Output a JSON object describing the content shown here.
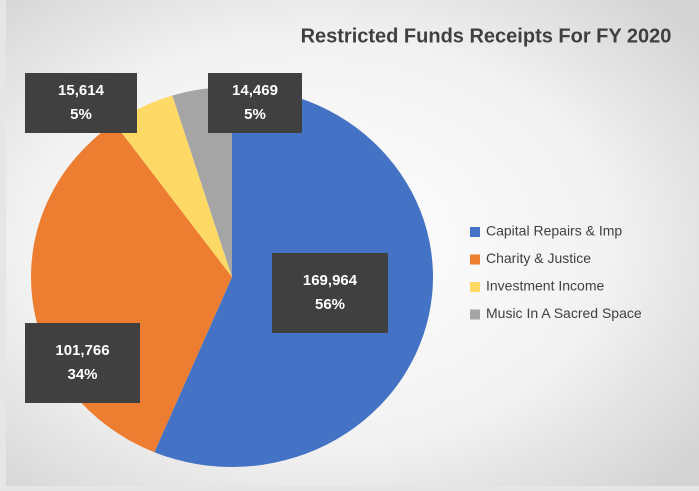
{
  "chart_data": {
    "type": "pie",
    "title": "Restricted Funds Receipts For FY 2020",
    "categories": [
      "Capital Repairs & Imp",
      "Charity & Justice",
      "Investment Income",
      "Music In A Sacred Space"
    ],
    "values": [
      169964,
      101766,
      15614,
      14469
    ],
    "value_labels": [
      "169,964",
      "101,766",
      "15,614",
      "14,469"
    ],
    "percents": [
      {
        "value": 56,
        "label": "56%"
      },
      {
        "value": 34,
        "label": "34%"
      },
      {
        "value": 5,
        "label": "5%"
      },
      {
        "value": 5,
        "label": "5%"
      }
    ],
    "colors": [
      "#4472c4",
      "#ed7d31",
      "#ffd966",
      "#a5a5a5"
    ],
    "legend": "right"
  }
}
